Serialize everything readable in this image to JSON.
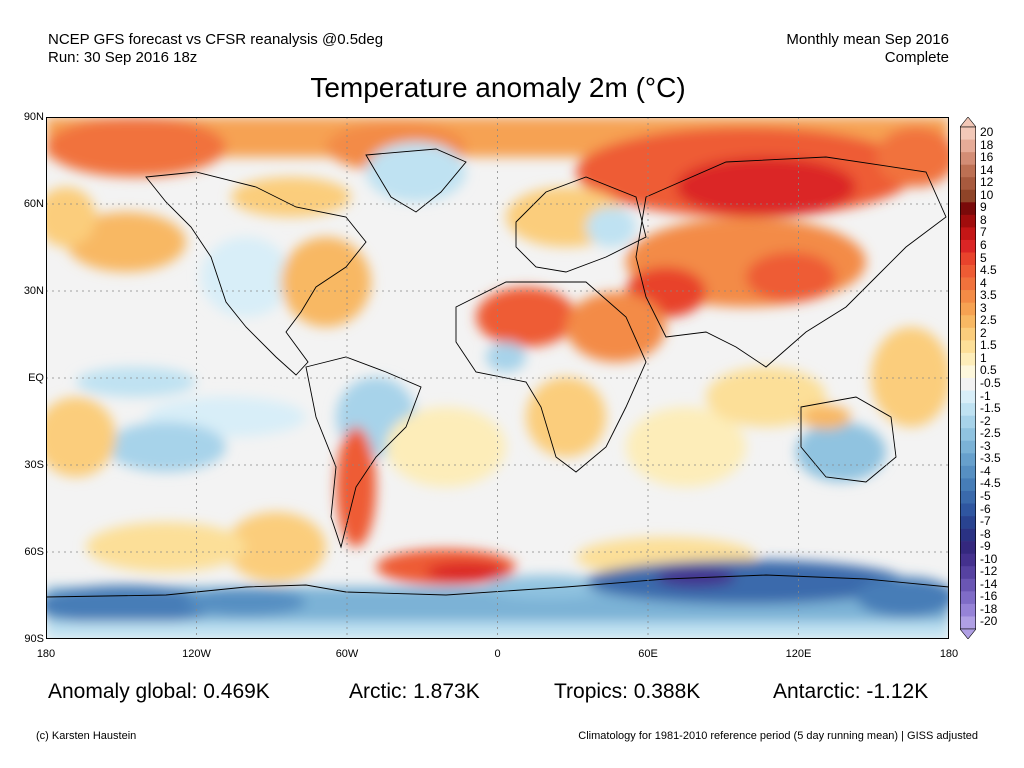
{
  "header": {
    "line1_left": "NCEP GFS forecast vs CFSR reanalysis @0.5deg",
    "line2_left": "Run: 30 Sep 2016 18z",
    "line1_right": "Monthly mean Sep 2016",
    "line2_right": "Complete"
  },
  "title": "Temperature anomaly 2m (°C)",
  "axes": {
    "lat_labels": [
      "90N",
      "60N",
      "30N",
      "EQ",
      "30S",
      "60S",
      "90S"
    ],
    "lon_labels": [
      "180",
      "120W",
      "60W",
      "0",
      "60E",
      "120E",
      "180"
    ]
  },
  "colorbar": {
    "labels": [
      "20",
      "18",
      "16",
      "14",
      "12",
      "10",
      "9",
      "8",
      "7",
      "6",
      "5",
      "4.5",
      "4",
      "3.5",
      "3",
      "2.5",
      "2",
      "1.5",
      "1",
      "0.5",
      "-0.5",
      "-1",
      "-1.5",
      "-2",
      "-2.5",
      "-3",
      "-3.5",
      "-4",
      "-4.5",
      "-5",
      "-6",
      "-7",
      "-8",
      "-9",
      "-10",
      "-12",
      "-14",
      "-16",
      "-18",
      "-20"
    ],
    "colors": [
      "#f2c8b8",
      "#e6ab97",
      "#d38d75",
      "#bd7053",
      "#a85a3e",
      "#8f4428",
      "#7a0a0a",
      "#a10d0d",
      "#c41616",
      "#db2525",
      "#e8432c",
      "#ee5b34",
      "#f1723c",
      "#f38b46",
      "#f6a252",
      "#f8b863",
      "#fbcd7c",
      "#fcdf98",
      "#fdedb9",
      "#fdf7dc",
      "#f2f2f2",
      "#d8eef8",
      "#bfe2f2",
      "#a7d3ea",
      "#90c3e0",
      "#7bb2d6",
      "#67a0cc",
      "#568fc2",
      "#467db7",
      "#3a6aac",
      "#2f56a0",
      "#294390",
      "#2a3283",
      "#34287e",
      "#44318e",
      "#5642a1",
      "#6a56b4",
      "#7f6cc7",
      "#9683d7",
      "#b0a0e4"
    ]
  },
  "stats": {
    "global": "Anomaly global: 0.469K",
    "arctic": "Arctic: 1.873K",
    "tropics": "Tropics: 0.388K",
    "antarctic": "Antarctic: -1.12K"
  },
  "footer": {
    "copyright": "(c) Karsten Haustein",
    "climatology": "Climatology for 1981-2010 reference period (5 day running mean) | GISS adjusted"
  }
}
